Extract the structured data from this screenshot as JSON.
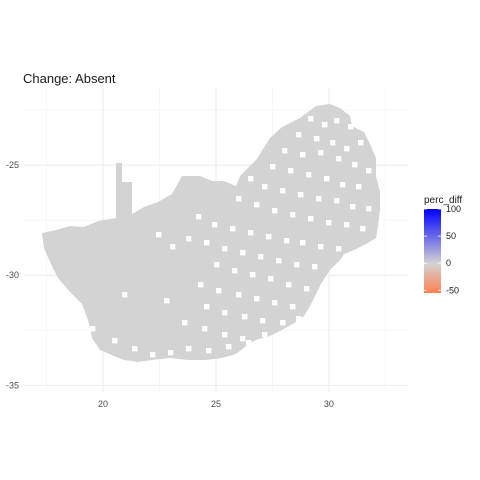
{
  "chart_data": {
    "type": "heatmap",
    "title": "Change: Absent",
    "xlabel": "",
    "ylabel": "",
    "x_ticks": [
      20,
      25,
      30
    ],
    "y_ticks": [
      -25,
      -30,
      -35
    ],
    "xlim": [
      16.5,
      33.5
    ],
    "ylim": [
      -35.3,
      -21.5
    ],
    "grid": true,
    "cell_fill": "#d3d3d3",
    "legend": {
      "title": "perc_diff",
      "position": "right",
      "values": [
        100,
        50,
        0,
        -50
      ],
      "colors": {
        "high": "#0000ff",
        "mid": "#d3d3d3",
        "low": "#ff7f50"
      },
      "range": [
        -55,
        100
      ]
    },
    "region": "South Africa"
  }
}
